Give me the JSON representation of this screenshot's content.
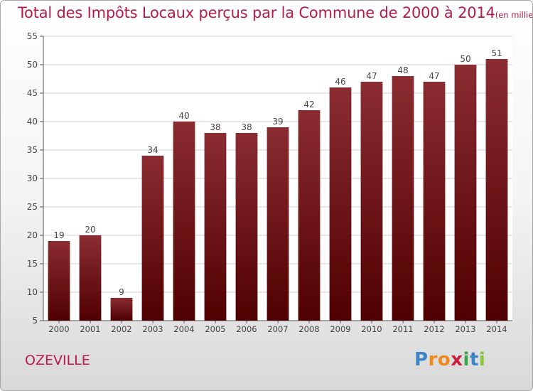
{
  "title": "Total des Impôts Locaux perçus par la Commune de 2000 à 2014",
  "title_unit": "(en milliers d'€)",
  "commune": "OZEVILLE",
  "logo": {
    "letters": [
      "P",
      "r",
      "o",
      "x",
      "i",
      "t",
      "i"
    ],
    "colors": [
      "#3a86c8",
      "#f08a1c",
      "#f08a1c",
      "#c81e3c",
      "#3aa44a",
      "#3a86c8",
      "#8cc63f"
    ]
  },
  "colors": {
    "bar_top": "#8a2c31",
    "bar_bottom": "#500000",
    "title": "#b81b4a",
    "grid": "#d0d0d0"
  },
  "chart_data": {
    "type": "bar",
    "categories": [
      "2000",
      "2001",
      "2002",
      "2003",
      "2004",
      "2005",
      "2006",
      "2007",
      "2008",
      "2009",
      "2010",
      "2011",
      "2012",
      "2013",
      "2014"
    ],
    "values": [
      19,
      20,
      9,
      34,
      40,
      38,
      38,
      39,
      42,
      46,
      47,
      48,
      47,
      50,
      51
    ],
    "ylim": [
      5,
      55
    ],
    "yticks": [
      5,
      10,
      15,
      20,
      25,
      30,
      35,
      40,
      45,
      50,
      55
    ],
    "grid": true,
    "xlabel": "",
    "ylabel": ""
  }
}
